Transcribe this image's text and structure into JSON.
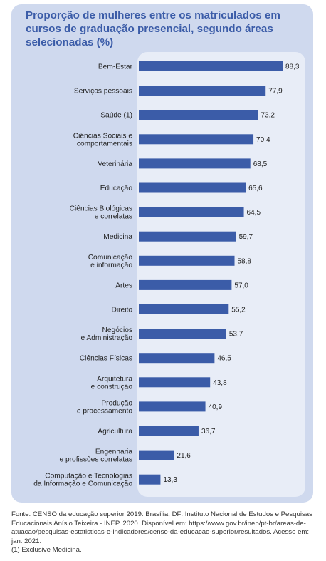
{
  "title": "Proporção de mulheres entre os matriculados em cursos de graduação presencial, segundo áreas selecionadas (%)",
  "colors": {
    "panel": "#cfd9ee",
    "plot_bg": "#e8edf7",
    "bar": "#3b5ca8",
    "title": "#3b5ca8"
  },
  "chart_data": {
    "type": "bar",
    "orientation": "horizontal",
    "title": "Proporção de mulheres entre os matriculados em cursos de graduação presencial, segundo áreas selecionadas (%)",
    "categories": [
      [
        "Bem-Estar"
      ],
      [
        "Serviços pessoais"
      ],
      [
        "Saúde (1)"
      ],
      [
        "Ciências Sociais e",
        "comportamentais"
      ],
      [
        "Veterinária"
      ],
      [
        "Educação"
      ],
      [
        "Ciências Biológicas",
        "e correlatas"
      ],
      [
        "Medicina"
      ],
      [
        "Comunicação",
        "e informação"
      ],
      [
        "Artes"
      ],
      [
        "Direito"
      ],
      [
        "Negócios",
        "e Administração"
      ],
      [
        "Ciências Físicas"
      ],
      [
        "Arquitetura",
        "e construção"
      ],
      [
        "Produção",
        "e processamento"
      ],
      [
        "Agricultura"
      ],
      [
        "Engenharia",
        "e profissões correlatas"
      ],
      [
        "Computação e Tecnologias",
        "da Informação e Comunicação"
      ]
    ],
    "values": [
      88.3,
      77.9,
      73.2,
      70.4,
      68.5,
      65.6,
      64.5,
      59.7,
      58.8,
      57.0,
      55.2,
      53.7,
      46.5,
      43.8,
      40.9,
      36.7,
      21.6,
      13.3
    ],
    "value_labels": [
      "88,3",
      "77,9",
      "73,2",
      "70,4",
      "68,5",
      "65,6",
      "64,5",
      "59,7",
      "58,8",
      "57,0",
      "55,2",
      "53,7",
      "46,5",
      "43,8",
      "40,9",
      "36,7",
      "21,6",
      "13,3"
    ],
    "xlim": [
      0,
      100
    ],
    "grid": false
  },
  "footer": {
    "source": "Fonte: CENSO da educação superior 2019. Brasília, DF: Instituto Nacional de Estudos e Pesquisas Educacionais Anísio Teixeira - INEP, 2020. Disponível em: https://www.gov.br/inep/pt-br/areas-de-atuacao/pesquisas-estatisticas-e-indicadores/censo-da-educacao-superior/resultados. Acesso em: jan. 2021.",
    "note": "(1) Exclusive Medicina."
  }
}
